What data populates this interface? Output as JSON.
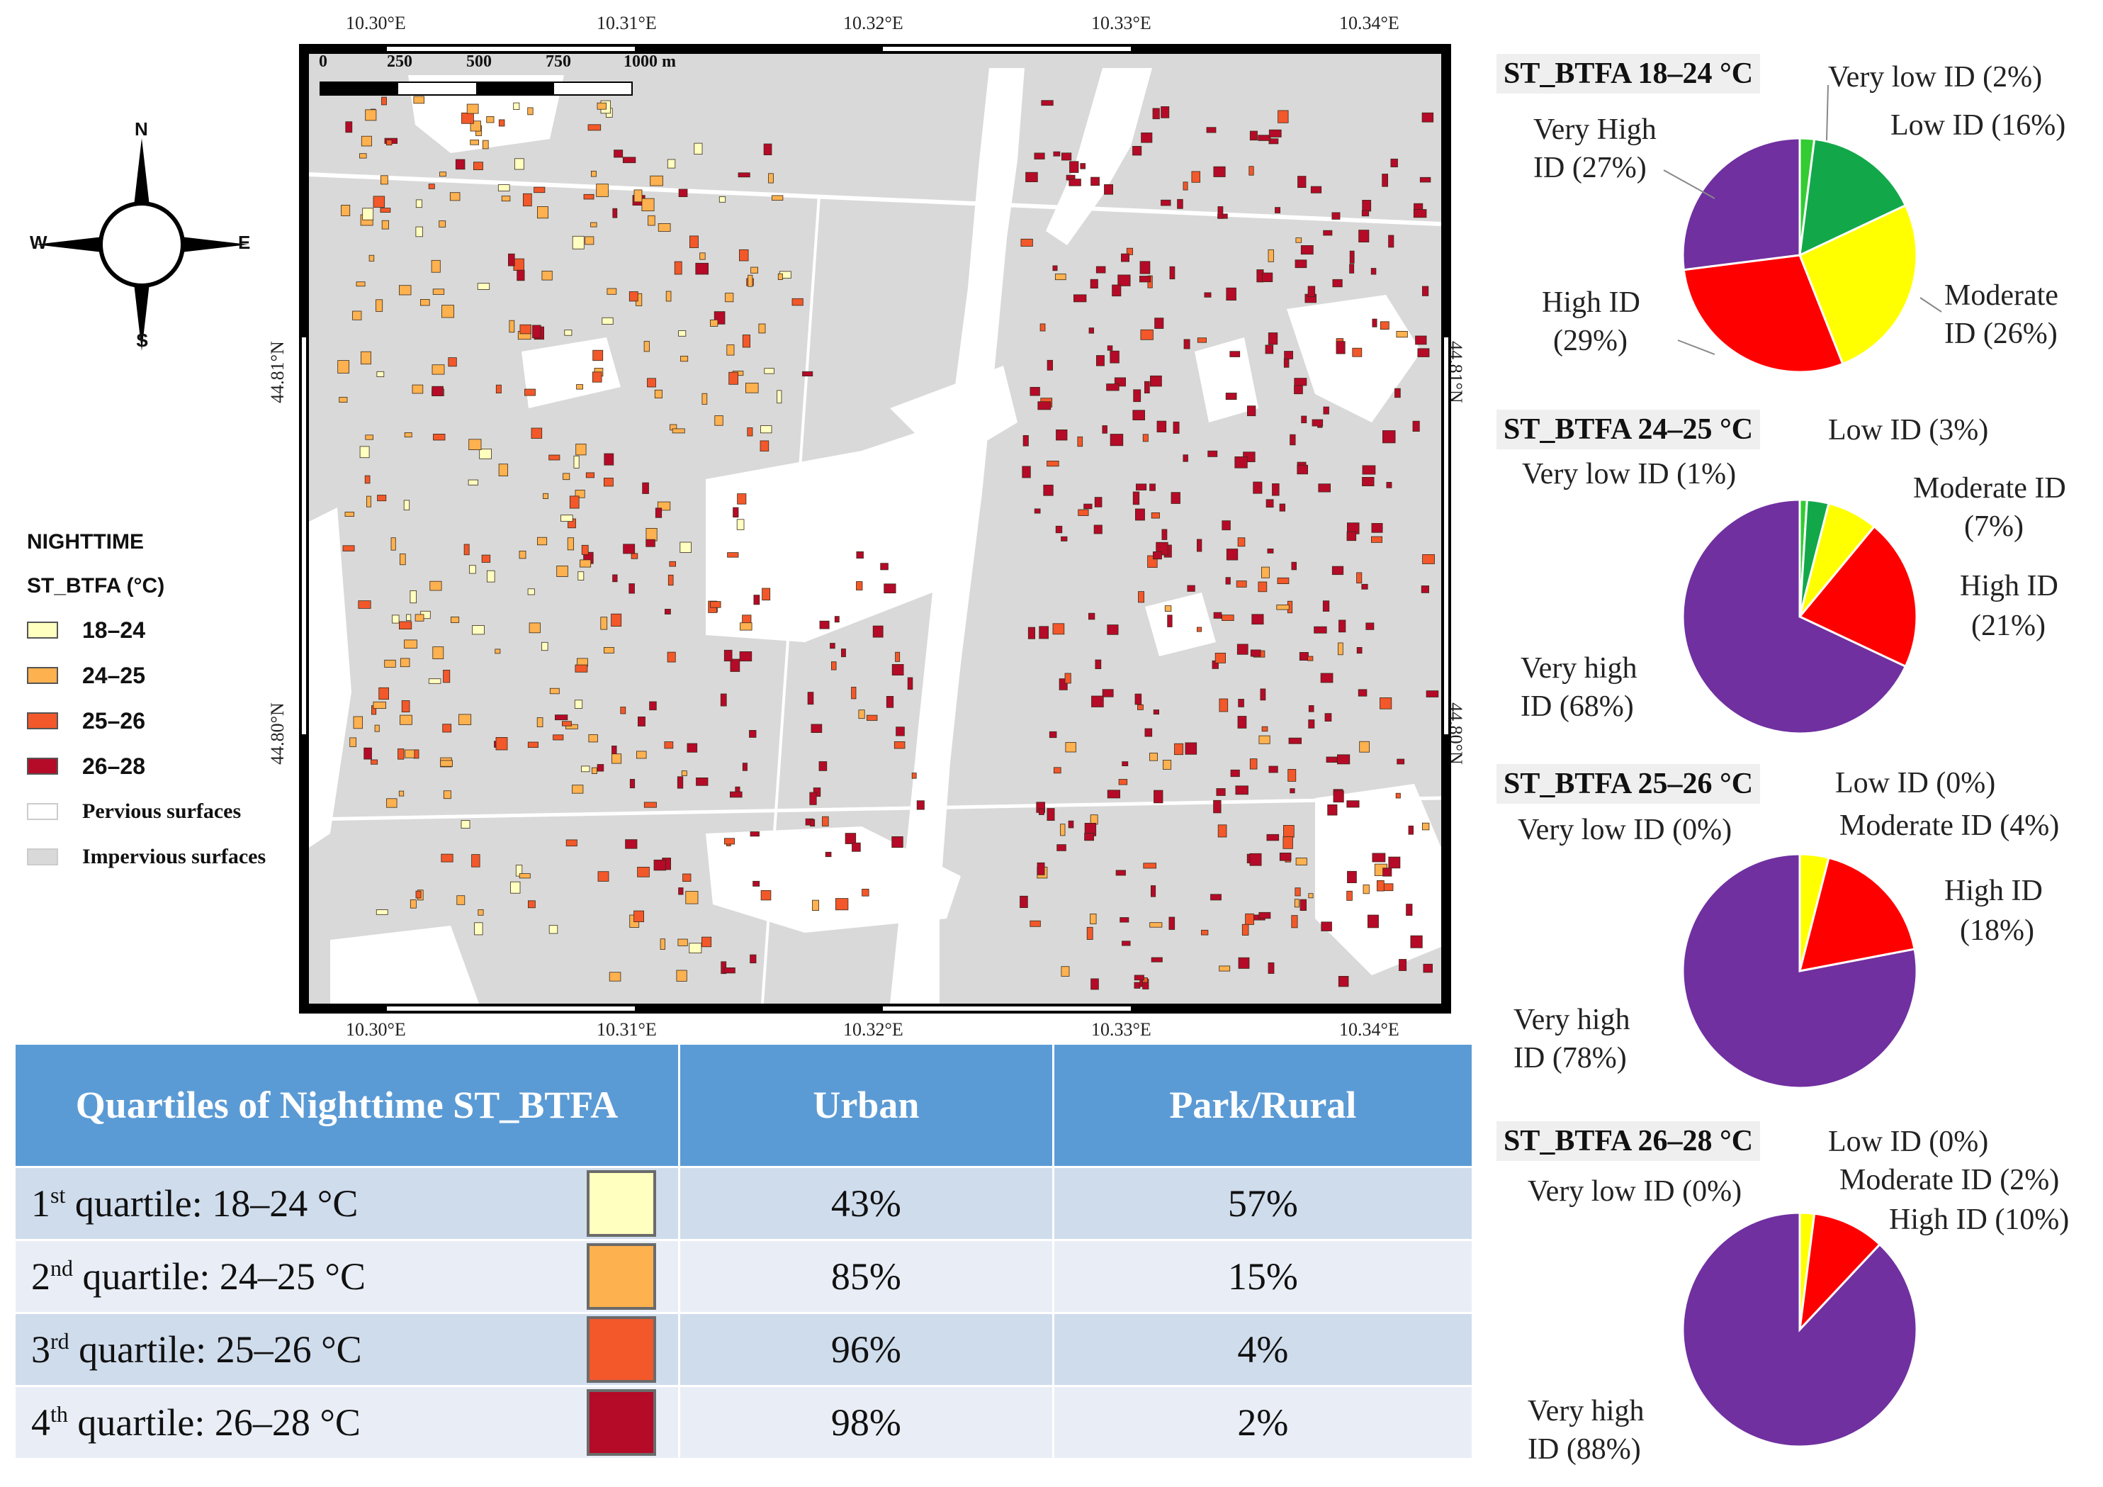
{
  "compass": {
    "n": "N",
    "s": "S",
    "e": "E",
    "w": "W"
  },
  "legend": {
    "title1": "NIGHTTIME",
    "title2": "ST_BTFA (°C)",
    "items": [
      {
        "label": "18–24",
        "color": "#ffffc0"
      },
      {
        "label": "24–25",
        "color": "#fdb14f"
      },
      {
        "label": "25–26",
        "color": "#f2582a"
      },
      {
        "label": "26–28",
        "color": "#b50a28"
      }
    ],
    "pervious": "Pervious surfaces",
    "impervious": "Impervious surfaces",
    "pervious_color": "#ffffff",
    "impervious_color": "#d9d9d9"
  },
  "map": {
    "lon_ticks": [
      "10.30°E",
      "10.31°E",
      "10.32°E",
      "10.33°E",
      "10.34°E"
    ],
    "lat_ticks": [
      "44.81°N",
      "44.80°N"
    ],
    "scale_labels": [
      "0",
      "250",
      "500",
      "750",
      "1000 m"
    ]
  },
  "table": {
    "header": {
      "quartiles": "Quartiles of Nighttime ST_BTFA",
      "urban": "Urban",
      "park": "Park/Rural"
    },
    "rows": [
      {
        "ord": "1",
        "sup": "st",
        "label": " quartile: 18–24 °C",
        "color": "#ffffc0",
        "urban": "43%",
        "park": "57%"
      },
      {
        "ord": "2",
        "sup": "nd",
        "label": " quartile: 24–25 °C",
        "color": "#fdb14f",
        "urban": "85%",
        "park": "15%"
      },
      {
        "ord": "3",
        "sup": "rd",
        "label": " quartile: 25–26 °C",
        "color": "#f2582a",
        "urban": "96%",
        "park": "4%"
      },
      {
        "ord": "4",
        "sup": "th",
        "label": " quartile: 26–28 °C",
        "color": "#b50a28",
        "urban": "98%",
        "park": "2%"
      }
    ]
  },
  "chart_data": [
    {
      "type": "pie",
      "title": "ST_BTFA 18–24 °C",
      "slices": [
        {
          "name": "Very low ID",
          "value": 2,
          "color": "#33cc33"
        },
        {
          "name": "Low ID",
          "value": 16,
          "color": "#12a84a"
        },
        {
          "name": "Moderate ID",
          "value": 26,
          "color": "#ffff00"
        },
        {
          "name": "High ID",
          "value": 29,
          "color": "#ff0000"
        },
        {
          "name": "Very High ID",
          "value": 27,
          "color": "#7030a0"
        }
      ],
      "labels": [
        "Very low ID (2%)",
        "Low ID (16%)",
        "Moderate",
        "ID (26%)",
        "High ID",
        "(29%)",
        "Very High",
        "ID (27%)"
      ]
    },
    {
      "type": "pie",
      "title": "ST_BTFA 24–25 °C",
      "slices": [
        {
          "name": "Very low ID",
          "value": 1,
          "color": "#33cc33"
        },
        {
          "name": "Low ID",
          "value": 3,
          "color": "#12a84a"
        },
        {
          "name": "Moderate ID",
          "value": 7,
          "color": "#ffff00"
        },
        {
          "name": "High ID",
          "value": 21,
          "color": "#ff0000"
        },
        {
          "name": "Very high ID",
          "value": 68,
          "color": "#7030a0"
        }
      ],
      "labels": [
        "Low ID (3%)",
        "Very low ID (1%)",
        "Moderate ID",
        "(7%)",
        "High ID",
        "(21%)",
        "Very high",
        "ID (68%)"
      ]
    },
    {
      "type": "pie",
      "title": "ST_BTFA 25–26 °C",
      "slices": [
        {
          "name": "Very low ID",
          "value": 0,
          "color": "#33cc33"
        },
        {
          "name": "Low ID",
          "value": 0,
          "color": "#12a84a"
        },
        {
          "name": "Moderate ID",
          "value": 4,
          "color": "#ffff00"
        },
        {
          "name": "High ID",
          "value": 18,
          "color": "#ff0000"
        },
        {
          "name": "Very high ID",
          "value": 78,
          "color": "#7030a0"
        }
      ],
      "labels": [
        "Low ID (0%)",
        "Very low ID (0%)",
        "Moderate ID (4%)",
        "High ID",
        "(18%)",
        "Very high",
        "ID (78%)"
      ]
    },
    {
      "type": "pie",
      "title": "ST_BTFA 26–28 °C",
      "slices": [
        {
          "name": "Very low ID",
          "value": 0,
          "color": "#33cc33"
        },
        {
          "name": "Low ID",
          "value": 0,
          "color": "#12a84a"
        },
        {
          "name": "Moderate ID",
          "value": 2,
          "color": "#ffff00"
        },
        {
          "name": "High ID",
          "value": 10,
          "color": "#ff0000"
        },
        {
          "name": "Very high ID",
          "value": 88,
          "color": "#7030a0"
        }
      ],
      "labels": [
        "Low ID (0%)",
        "Very low ID (0%)",
        "Moderate ID (2%)",
        "High ID (10%)",
        "Very high",
        "ID (88%)"
      ]
    }
  ]
}
